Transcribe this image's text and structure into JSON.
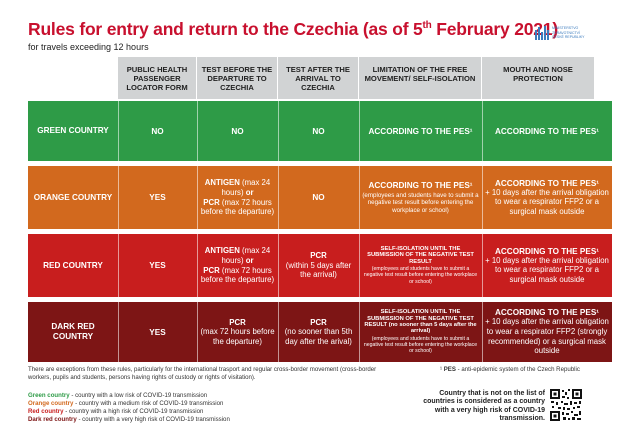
{
  "header": {
    "title_main": "Rules for entry and return to the Czechia (as of 5",
    "title_sup": "th",
    "title_end": " February 2021)",
    "subtitle": "for travels exceeding 12 hours",
    "logo_line1": "MINISTERSTVO ZDRAVOTNICTVÍ",
    "logo_line2": "ČESKÉ REPUBLIKY"
  },
  "columns": [
    "PUBLIC HEALTH PASSENGER LOCATOR FORM",
    "TEST BEFORE THE DEPARTURE TO CZECHIA",
    "TEST AFTER THE ARRIVAL TO CZECHIA",
    "LIMITATION OF THE FREE MOVEMENT/ SELF-ISOLATION",
    "MOUTH AND NOSE PROTECTION"
  ],
  "rows": [
    {
      "label": "GREEN COUNTRY",
      "color": "#2e9b47",
      "plf": "NO",
      "before": "NO",
      "after": "NO",
      "limit_main": "ACCORDING TO THE PES¹",
      "mask_main": "ACCORDING TO THE PES¹"
    },
    {
      "label": "ORANGE COUNTRY",
      "color": "#d2691e",
      "plf": "YES",
      "before_a": "ANTIGEN",
      "before_b": " (max 24 hours) ",
      "before_c": "or",
      "before_d": "PCR",
      "before_e": " (max 72 hours before the departure)",
      "after": "NO",
      "limit_main": "ACCORDING TO THE PES¹",
      "limit_sub": "(employees and students have to submit a negative test result before entering the workplace or school)",
      "mask_main": "ACCORDING TO THE PES¹",
      "mask_sub": "+ 10 days after the arrival obligation to wear a respirator FFP2 or a surgical mask outside"
    },
    {
      "label": "RED COUNTRY",
      "color": "#c81e1e",
      "plf": "YES",
      "before_a": "ANTIGEN",
      "before_b": " (max 24 hours) ",
      "before_c": "or",
      "before_d": "PCR",
      "before_e": " (max 72 hours before the departure)",
      "after_a": "PCR",
      "after_b": "(within 5 days after the arrival)",
      "limit_main": "SELF-ISOLATION UNTIL THE SUBMISSION OF THE NEGATIVE TEST RESULT",
      "limit_sub": "(employees and students have to submit a negative test result before entering the workplace or school)",
      "mask_main": "ACCORDING TO THE PES¹",
      "mask_sub": "+ 10 days after the arrival obligation to wear a respirator FFP2 or a surgical mask outside"
    },
    {
      "label": "DARK RED COUNTRY",
      "color": "#7d1515",
      "plf": "YES",
      "before_a": "PCR",
      "before_b": "(max 72 hours before the departure)",
      "after_a": "PCR",
      "after_b": "(no sooner than 5th day after the arival)",
      "limit_main": "SELF-ISOLATION UNTIL THE SUBMISSION OF THE NEGATIVE TEST RESULT (no sooner than 5 days after the arrival)",
      "limit_sub": "(employees and students have to submit a negative test result before entering the workplace or school)",
      "mask_main": "ACCORDING TO THE PES¹",
      "mask_sub": "+ 10 days after the arrival obligation to wear a respirator FFP2 (strongly recommended) or a surgical mask outside"
    }
  ],
  "footer": {
    "exceptions": "There are exceptions from these rules, particularly for the international trasport and regular cross-border movement (cross-border workers, pupils and students, persons having rights of custody or rights of visitation).",
    "pes_sup": "¹",
    "pes_term": "PES",
    "pes_def": " - anti-epidemic system of the Czech Republic",
    "legend": [
      {
        "term": "Green country",
        "desc": " - country with a low risk of COVID-19 transmission",
        "color": "#2e9b47"
      },
      {
        "term": "Orange country",
        "desc": " - country with a medium risk of COVID-19 transmission",
        "color": "#d2691e"
      },
      {
        "term": "Red country",
        "desc": " - country with a high risk of COVID-19 transmission",
        "color": "#c81e1e"
      },
      {
        "term": "Dark red country",
        "desc": " - country with a very high risk of COVID-19 transmission",
        "color": "#7d1515"
      }
    ],
    "note": "Country that is not on the list of countries is considered as a country with a very high risk of COVID-19 transmission."
  }
}
